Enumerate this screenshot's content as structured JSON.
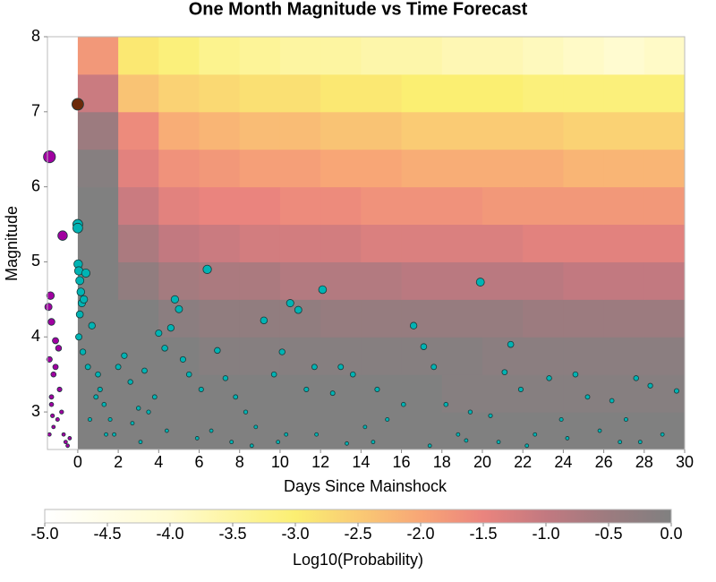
{
  "chart_data": {
    "type": "heatmap-scatter",
    "title": "One Month Magnitude vs Time Forecast",
    "x_label": "Days Since Mainshock",
    "y_label": "Magnitude",
    "xlim": [
      -1.5,
      30
    ],
    "ylim": [
      2.5,
      8
    ],
    "xticks": [
      0,
      2,
      4,
      6,
      8,
      10,
      12,
      14,
      16,
      18,
      20,
      22,
      24,
      26,
      28,
      30
    ],
    "yticks": [
      3,
      4,
      5,
      6,
      7,
      8
    ],
    "grid": false,
    "x_bins": [
      0,
      2,
      4,
      6,
      8,
      10,
      12,
      14,
      16,
      18,
      20,
      22,
      24,
      26,
      28,
      30
    ],
    "y_bins": [
      2.5,
      3,
      3.5,
      4,
      4.5,
      5,
      5.5,
      6,
      6.5,
      7,
      7.5,
      8
    ],
    "z": [
      [
        0,
        0,
        0,
        0,
        0,
        0,
        0,
        0,
        0,
        0,
        0,
        0,
        0,
        0,
        0
      ],
      [
        0,
        0,
        0,
        0,
        0,
        0,
        0,
        0,
        0,
        -0.1,
        -0.1,
        -0.1,
        -0.1,
        -0.1,
        -0.1
      ],
      [
        0,
        0,
        0,
        -0.1,
        -0.1,
        -0.1,
        -0.1,
        -0.1,
        -0.1,
        -0.1,
        -0.2,
        -0.2,
        -0.2,
        -0.2,
        -0.2
      ],
      [
        0,
        0,
        -0.2,
        -0.3,
        -0.3,
        -0.3,
        -0.4,
        -0.4,
        -0.4,
        -0.4,
        -0.4,
        -0.5,
        -0.5,
        -0.5,
        -0.5
      ],
      [
        0,
        -0.3,
        -0.6,
        -0.7,
        -0.7,
        -0.8,
        -0.8,
        -0.8,
        -0.9,
        -0.9,
        -0.9,
        -0.9,
        -1.0,
        -1.0,
        -1.0
      ],
      [
        0,
        -0.7,
        -1.0,
        -1.1,
        -1.2,
        -1.2,
        -1.2,
        -1.3,
        -1.3,
        -1.3,
        -1.3,
        -1.4,
        -1.4,
        -1.4,
        -1.4
      ],
      [
        0,
        -1.1,
        -1.4,
        -1.5,
        -1.5,
        -1.6,
        -1.6,
        -1.7,
        -1.7,
        -1.7,
        -1.8,
        -1.8,
        -1.8,
        -1.8,
        -1.8
      ],
      [
        -0.1,
        -1.4,
        -1.7,
        -1.8,
        -1.9,
        -1.9,
        -2.0,
        -2.0,
        -2.1,
        -2.1,
        -2.1,
        -2.1,
        -2.2,
        -2.2,
        -2.2
      ],
      [
        -0.5,
        -1.6,
        -2.1,
        -2.2,
        -2.3,
        -2.3,
        -2.4,
        -2.4,
        -2.5,
        -2.5,
        -2.5,
        -2.5,
        -2.6,
        -2.6,
        -2.6
      ],
      [
        -1.1,
        -2.4,
        -2.6,
        -2.7,
        -2.8,
        -2.8,
        -2.9,
        -2.9,
        -3.0,
        -3.0,
        -3.0,
        -3.1,
        -3.1,
        -3.1,
        -3.1
      ],
      [
        -1.8,
        -2.9,
        -3.1,
        -3.3,
        -3.4,
        -3.5,
        -3.5,
        -3.6,
        -3.6,
        -3.7,
        -3.7,
        -3.8,
        -3.9,
        -4.0,
        -3.9
      ]
    ],
    "colormap": [
      {
        "value": -5,
        "color": "#ffffff"
      },
      {
        "value": -4,
        "color": "#fffbd0"
      },
      {
        "value": -3,
        "color": "#fbef72"
      },
      {
        "value": -2,
        "color": "#f8a676"
      },
      {
        "value": -1.5,
        "color": "#ea847e"
      },
      {
        "value": -1,
        "color": "#c27980"
      },
      {
        "value": -0.5,
        "color": "#9c7b7f"
      },
      {
        "value": 0,
        "color": "#808080"
      }
    ],
    "colorbar_label": "Log10(Probability)",
    "clim": [
      -5,
      0
    ],
    "cticks": [
      {
        "value": -5,
        "label": "-5.0"
      },
      {
        "value": -4.5,
        "label": "-4.5"
      },
      {
        "value": -4,
        "label": "-4.0"
      },
      {
        "value": -3.5,
        "label": "-3.5"
      },
      {
        "value": -3,
        "label": "-3.0"
      },
      {
        "value": -2.5,
        "label": "-2.5"
      },
      {
        "value": -2,
        "label": "-2.0"
      },
      {
        "value": -1.5,
        "label": "-1.5"
      },
      {
        "value": -1,
        "label": "-1.0"
      },
      {
        "value": -0.5,
        "label": "-0.5"
      },
      {
        "value": 0,
        "label": "0.0"
      }
    ],
    "series": [
      {
        "color": "#00b4b4",
        "x": [
          0,
          0,
          0.02,
          0.05,
          0.1,
          0.15,
          0.2,
          0.3,
          0.4,
          0.1,
          0.05,
          0.25,
          0.5,
          0.7,
          1.0,
          1.1,
          1.3,
          1.6,
          2.0,
          2.3,
          2.6,
          3.0,
          3.3,
          3.8,
          4.0,
          4.3,
          4.6,
          4.8,
          5.0,
          5.2,
          5.5,
          6.1,
          6.4,
          6.9,
          7.3,
          7.8,
          8.3,
          8.8,
          9.2,
          9.7,
          10.1,
          10.5,
          10.9,
          11.3,
          11.7,
          12.1,
          12.6,
          13.0,
          13.6,
          14.2,
          14.8,
          15.3,
          16.1,
          16.6,
          17.1,
          17.6,
          18.2,
          18.8,
          19.4,
          19.9,
          20.4,
          21.1,
          21.4,
          21.9,
          22.6,
          23.3,
          23.9,
          24.6,
          25.2,
          25.8,
          26.4,
          27.1,
          27.6,
          28.3,
          28.9,
          29.6,
          3.1,
          5.9,
          8.6,
          11.8,
          14.6,
          17.4,
          20.8,
          24.2,
          27.8,
          1.8,
          4.4,
          9.9,
          13.3,
          19.2,
          22.2,
          26.8,
          0.6,
          0.9,
          1.4,
          2.7,
          3.5,
          6.6,
          7.6,
          10.3
        ],
        "y": [
          5.5,
          5.45,
          4.97,
          4.88,
          4.75,
          4.6,
          4.45,
          4.5,
          4.85,
          4.3,
          4.0,
          3.8,
          3.6,
          4.15,
          3.5,
          3.3,
          3.1,
          2.9,
          3.6,
          3.75,
          3.4,
          3.05,
          3.55,
          3.2,
          4.05,
          3.85,
          4.12,
          4.5,
          4.37,
          3.7,
          3.5,
          3.3,
          4.9,
          3.82,
          3.45,
          3.2,
          3.0,
          2.8,
          4.22,
          3.5,
          3.8,
          4.45,
          4.36,
          3.3,
          3.6,
          4.63,
          3.25,
          3.6,
          3.5,
          2.8,
          3.3,
          2.9,
          3.1,
          4.15,
          3.87,
          3.6,
          3.1,
          2.7,
          3.0,
          4.73,
          2.95,
          3.53,
          3.9,
          3.3,
          2.7,
          3.45,
          2.9,
          3.5,
          3.2,
          2.75,
          3.15,
          2.9,
          3.45,
          3.35,
          2.7,
          3.28,
          2.6,
          2.65,
          2.55,
          2.7,
          2.6,
          2.55,
          2.6,
          2.65,
          2.6,
          2.7,
          2.75,
          2.6,
          2.58,
          2.62,
          2.55,
          2.6,
          2.9,
          3.2,
          2.7,
          2.85,
          3.0,
          2.75,
          2.6,
          2.7
        ]
      },
      {
        "color": "#a000a0",
        "x": [
          -1.4,
          -0.75,
          -1.35,
          -1.3,
          -1.1,
          -1.4,
          -1.2,
          -0.9,
          -1.3,
          -1.0,
          -1.4,
          -0.6,
          -0.8,
          -1.2,
          -0.5,
          -1.1,
          -0.7,
          -1.3,
          -1.45,
          -0.95,
          -0.4,
          -1.25
        ],
        "y": [
          6.4,
          5.35,
          4.55,
          4.2,
          3.95,
          3.7,
          3.5,
          3.3,
          3.1,
          2.9,
          2.7,
          2.6,
          3.0,
          2.8,
          2.55,
          3.6,
          2.7,
          3.2,
          4.4,
          3.85,
          2.65,
          2.95
        ]
      },
      {
        "color": "#6b2a0a",
        "x": [
          0
        ],
        "y": [
          7.1
        ]
      }
    ]
  }
}
